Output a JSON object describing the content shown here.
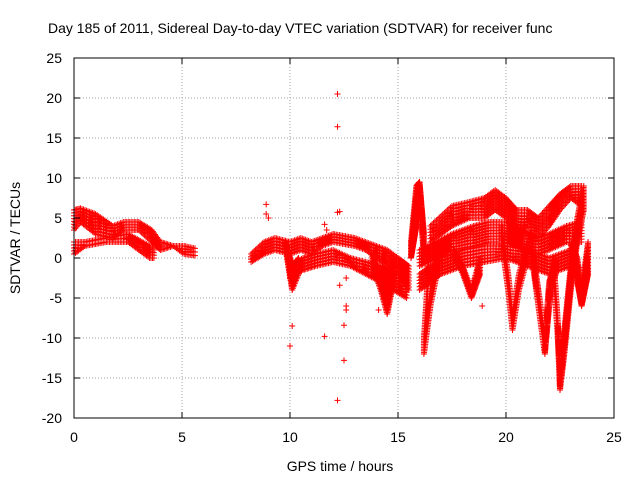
{
  "chart_data": {
    "type": "scatter",
    "title": "Day 185 of 2011, Sidereal Day-to-day VTEC variation (SDTVAR) for receiver func",
    "xlabel": "GPS time / hours",
    "ylabel": "SDTVAR / TECUs",
    "xlim": [
      0,
      25
    ],
    "ylim": [
      -20,
      25
    ],
    "xticks": [
      0,
      5,
      10,
      15,
      20,
      25
    ],
    "yticks": [
      -20,
      -15,
      -10,
      -5,
      0,
      5,
      10,
      15,
      20,
      25
    ],
    "grid": true,
    "marker": "+",
    "color": "#ff0000",
    "bands": [
      {
        "name": "morning-arc",
        "segs": [
          [
            0,
            3.5,
            6
          ],
          [
            0.3,
            4.5,
            6.2
          ],
          [
            1.0,
            3,
            5.5
          ],
          [
            1.8,
            2.5,
            4
          ],
          [
            2.3,
            3.5,
            4.5
          ],
          [
            3.0,
            3.5,
            4.5
          ],
          [
            3.6,
            2,
            3.5
          ],
          [
            4.0,
            1,
            2
          ],
          [
            4.6,
            1.5,
            1.5
          ],
          [
            5.1,
            0.5,
            1.5
          ],
          [
            5.6,
            0.3,
            1.2
          ]
        ]
      },
      {
        "name": "morning-low",
        "segs": [
          [
            0,
            0.5,
            2
          ],
          [
            0.5,
            1.5,
            2
          ],
          [
            1.5,
            2,
            2.5
          ],
          [
            2.5,
            2,
            3
          ],
          [
            3.5,
            0,
            1.5
          ],
          [
            3.7,
            0,
            1
          ]
        ]
      },
      {
        "name": "midday-main",
        "segs": [
          [
            8.2,
            -0.5,
            0.5
          ],
          [
            8.8,
            0.5,
            2
          ],
          [
            9.3,
            1,
            2.5
          ],
          [
            10.0,
            0.5,
            2
          ],
          [
            10.5,
            1,
            2.5
          ],
          [
            11.0,
            0.5,
            2
          ],
          [
            11.5,
            1.5,
            2.5
          ],
          [
            12.0,
            2,
            3
          ],
          [
            13.0,
            1.5,
            2.5
          ],
          [
            13.5,
            1,
            2
          ],
          [
            14.0,
            0,
            1.5
          ],
          [
            14.5,
            -1,
            1
          ],
          [
            15.0,
            -2,
            0
          ],
          [
            15.5,
            -4,
            -1
          ]
        ]
      },
      {
        "name": "midday-lower",
        "segs": [
          [
            10.0,
            -2.5,
            -1
          ],
          [
            10.6,
            -1.5,
            0
          ],
          [
            11.2,
            -1,
            0.5
          ],
          [
            12.0,
            -0.5,
            1
          ],
          [
            12.8,
            -1,
            0
          ],
          [
            13.5,
            -2,
            -0.5
          ],
          [
            14.2,
            -3,
            -1
          ],
          [
            14.8,
            -4,
            -2
          ],
          [
            15.4,
            -5,
            -2.5
          ]
        ]
      },
      {
        "name": "dip-1",
        "segs": [
          [
            13.8,
            -1,
            0.5
          ],
          [
            14.2,
            -4,
            -2
          ],
          [
            14.5,
            -7,
            -4
          ],
          [
            14.8,
            -3,
            0
          ]
        ]
      },
      {
        "name": "dip-2",
        "segs": [
          [
            9.8,
            1,
            2
          ],
          [
            10.1,
            -4,
            -1
          ],
          [
            10.4,
            -2,
            0
          ]
        ]
      },
      {
        "name": "spike-1",
        "segs": [
          [
            15.6,
            0,
            2
          ],
          [
            15.85,
            4,
            9
          ],
          [
            16.0,
            8,
            9.5
          ],
          [
            16.2,
            0,
            3
          ]
        ]
      },
      {
        "name": "afternoon-upper",
        "segs": [
          [
            16.5,
            2,
            4
          ],
          [
            17.5,
            4,
            6.5
          ],
          [
            18.3,
            5,
            7
          ],
          [
            19.0,
            5,
            7.5
          ],
          [
            19.5,
            6,
            8.5
          ],
          [
            20.0,
            5,
            7.5
          ],
          [
            20.5,
            3,
            6
          ],
          [
            21.0,
            4,
            6
          ],
          [
            21.5,
            2.5,
            5
          ],
          [
            22.0,
            4,
            6.5
          ],
          [
            22.5,
            6,
            8
          ],
          [
            23.0,
            7.5,
            9
          ],
          [
            23.5,
            6.5,
            9
          ]
        ]
      },
      {
        "name": "afternoon-mid",
        "segs": [
          [
            16.0,
            -1,
            1
          ],
          [
            16.8,
            0,
            2
          ],
          [
            17.5,
            1,
            3
          ],
          [
            18.5,
            1.5,
            4
          ],
          [
            19.2,
            2,
            4.5
          ],
          [
            20.0,
            2,
            4.5
          ],
          [
            20.8,
            1,
            3.5
          ],
          [
            21.5,
            0.5,
            2.5
          ],
          [
            22.0,
            1,
            3
          ],
          [
            22.8,
            2,
            4
          ],
          [
            23.5,
            2,
            4.5
          ]
        ]
      },
      {
        "name": "afternoon-lower",
        "segs": [
          [
            16.0,
            -4,
            -2
          ],
          [
            17.0,
            -2,
            0
          ],
          [
            18.0,
            -1,
            1
          ],
          [
            19.0,
            -0.5,
            1.5
          ],
          [
            20.0,
            0,
            1.5
          ],
          [
            21.0,
            -1,
            1
          ],
          [
            22.0,
            -2,
            0
          ],
          [
            23.0,
            -1,
            1
          ]
        ]
      },
      {
        "name": "dive-1",
        "segs": [
          [
            16.4,
            -3,
            -1
          ],
          [
            16.3,
            -8,
            -6
          ],
          [
            16.2,
            -12,
            -10
          ],
          [
            16.5,
            -6,
            -4
          ],
          [
            16.8,
            -2,
            0
          ]
        ]
      },
      {
        "name": "dive-2",
        "segs": [
          [
            17.6,
            0,
            1
          ],
          [
            18.0,
            -2,
            -1
          ],
          [
            18.4,
            -5,
            -4
          ],
          [
            18.8,
            -2,
            0
          ]
        ]
      },
      {
        "name": "dive-3",
        "segs": [
          [
            19.8,
            2,
            4
          ],
          [
            20.1,
            -4,
            -2
          ],
          [
            20.3,
            -9,
            -7
          ],
          [
            20.6,
            -4,
            -2
          ],
          [
            21.0,
            0,
            2
          ]
        ]
      },
      {
        "name": "dive-4",
        "segs": [
          [
            21.2,
            0,
            1.5
          ],
          [
            21.5,
            -6,
            -4
          ],
          [
            21.8,
            -12,
            -10
          ],
          [
            22.0,
            -6,
            -3
          ],
          [
            22.3,
            -2,
            0
          ]
        ]
      },
      {
        "name": "dive-5",
        "segs": [
          [
            22.2,
            -2,
            0
          ],
          [
            22.4,
            -10,
            -8
          ],
          [
            22.5,
            -16.5,
            -14
          ],
          [
            22.7,
            -12,
            -9
          ],
          [
            23.0,
            -4,
            -1
          ],
          [
            23.3,
            2,
            5
          ],
          [
            23.6,
            6,
            9
          ]
        ]
      },
      {
        "name": "dive-6",
        "segs": [
          [
            23.0,
            0,
            2
          ],
          [
            23.3,
            -3,
            0
          ],
          [
            23.5,
            -6,
            -4
          ],
          [
            23.8,
            -2,
            2
          ]
        ]
      }
    ],
    "outliers": [
      [
        8.9,
        6.7
      ],
      [
        8.9,
        5.5
      ],
      [
        9.0,
        5.0
      ],
      [
        10.1,
        -8.5
      ],
      [
        10.0,
        -11.0
      ],
      [
        11.6,
        -9.8
      ],
      [
        11.6,
        4.2
      ],
      [
        11.7,
        3.5
      ],
      [
        12.2,
        20.5
      ],
      [
        12.2,
        16.4
      ],
      [
        12.3,
        5.8
      ],
      [
        12.2,
        5.7
      ],
      [
        12.3,
        -3.4
      ],
      [
        12.2,
        -17.8
      ],
      [
        12.6,
        -6.0
      ],
      [
        12.6,
        -6.5
      ],
      [
        12.5,
        -8.4
      ],
      [
        12.5,
        -12.8
      ],
      [
        12.6,
        -2.5
      ],
      [
        14.1,
        -6.5
      ],
      [
        18.9,
        -6.0
      ]
    ]
  }
}
